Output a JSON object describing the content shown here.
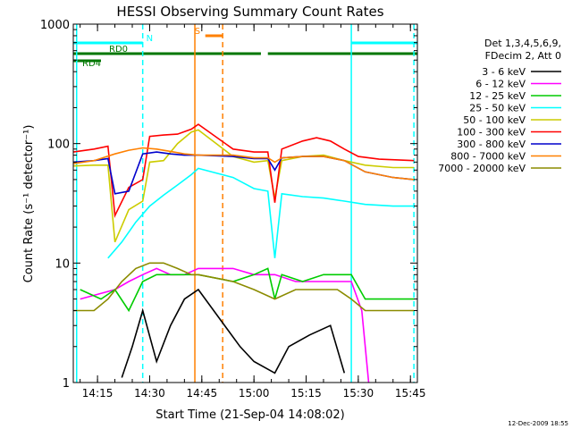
{
  "chart_data": {
    "type": "line",
    "title": "HESSI Observing Summary Count Rates",
    "xlabel": "Start Time (21-Sep-04 14:08:02)",
    "ylabel": "Count Rate (s⁻¹ detector⁻¹)",
    "ylog": true,
    "ylim": [
      1,
      1000
    ],
    "xlim": [
      "14:08:02",
      "15:47:00"
    ],
    "x_ticks": [
      "14:15",
      "14:30",
      "14:45",
      "15:00",
      "15:15",
      "15:30",
      "15:45"
    ],
    "y_ticks": [
      "1",
      "10",
      "100",
      "1000"
    ],
    "legend_header": [
      "Det 1,3,4,5,6,9,",
      "FDecim 2, Att 0"
    ],
    "footer_date": "12-Dec-2009 18:55",
    "flags": [
      {
        "label": "N",
        "color": "#00ffff",
        "segments": [
          [
            "14:08",
            "14:28"
          ],
          [
            "15:28",
            "15:47"
          ]
        ]
      },
      {
        "label": "S",
        "color": "#ff8000",
        "segments": [
          [
            "14:46",
            "14:51"
          ]
        ]
      },
      {
        "label": "RD0",
        "color": "#007700",
        "segments": [
          [
            "14:08",
            "15:02"
          ],
          [
            "15:04",
            "15:47"
          ]
        ]
      },
      {
        "label": "RD4",
        "color": "#007700",
        "segments": [
          [
            "14:08",
            "14:16"
          ]
        ]
      }
    ],
    "vlines": [
      {
        "time": "14:09",
        "color": "#00ffff",
        "style": "solid"
      },
      {
        "time": "14:28",
        "color": "#00ffff",
        "style": "dashed"
      },
      {
        "time": "14:43",
        "color": "#ff8000",
        "style": "solid"
      },
      {
        "time": "14:51",
        "color": "#ff8000",
        "style": "dashed"
      },
      {
        "time": "15:28",
        "color": "#00ffff",
        "style": "solid"
      },
      {
        "time": "15:46",
        "color": "#00ffff",
        "style": "dashed"
      }
    ],
    "series": [
      {
        "name": "3 - 6 keV",
        "color": "#000000",
        "points": [
          [
            "14:22",
            1.1
          ],
          [
            "14:25",
            2
          ],
          [
            "14:28",
            4
          ],
          [
            "14:32",
            1.5
          ],
          [
            "14:36",
            3
          ],
          [
            "14:40",
            5
          ],
          [
            "14:44",
            6
          ],
          [
            "14:56",
            2
          ],
          [
            "15:00",
            1.5
          ],
          [
            "15:06",
            1.2
          ],
          [
            "15:10",
            2
          ],
          [
            "15:16",
            2.5
          ],
          [
            "15:22",
            3
          ],
          [
            "15:26",
            1.2
          ]
        ]
      },
      {
        "name": "6 - 12 keV",
        "color": "#ff00ff",
        "points": [
          [
            "14:10",
            5
          ],
          [
            "14:20",
            6
          ],
          [
            "14:24",
            7
          ],
          [
            "14:28",
            8
          ],
          [
            "14:32",
            9
          ],
          [
            "14:36",
            8
          ],
          [
            "14:40",
            8
          ],
          [
            "14:44",
            9
          ],
          [
            "14:54",
            9
          ],
          [
            "15:00",
            8
          ],
          [
            "15:06",
            8
          ],
          [
            "15:12",
            7
          ],
          [
            "15:18",
            7
          ],
          [
            "15:24",
            7
          ],
          [
            "15:28",
            7
          ],
          [
            "15:31",
            4
          ],
          [
            "15:33",
            1
          ]
        ]
      },
      {
        "name": "12 - 25 keV",
        "color": "#00cc00",
        "points": [
          [
            "14:10",
            6
          ],
          [
            "14:16",
            5
          ],
          [
            "14:20",
            6
          ],
          [
            "14:24",
            4
          ],
          [
            "14:28",
            7
          ],
          [
            "14:32",
            8
          ],
          [
            "14:36",
            8
          ],
          [
            "14:40",
            8
          ],
          [
            "14:44",
            8
          ],
          [
            "14:54",
            7
          ],
          [
            "15:00",
            8
          ],
          [
            "15:04",
            9
          ],
          [
            "15:06",
            5
          ],
          [
            "15:08",
            8
          ],
          [
            "15:14",
            7
          ],
          [
            "15:20",
            8
          ],
          [
            "15:28",
            8
          ],
          [
            "15:32",
            5
          ],
          [
            "15:46",
            5
          ]
        ]
      },
      {
        "name": "25 - 50 keV",
        "color": "#00ffff",
        "points": [
          [
            "14:18",
            11
          ],
          [
            "14:22",
            15
          ],
          [
            "14:26",
            22
          ],
          [
            "14:30",
            30
          ],
          [
            "14:34",
            37
          ],
          [
            "14:38",
            45
          ],
          [
            "14:42",
            55
          ],
          [
            "14:44",
            62
          ],
          [
            "14:54",
            52
          ],
          [
            "15:00",
            42
          ],
          [
            "15:04",
            40
          ],
          [
            "15:06",
            11
          ],
          [
            "15:08",
            38
          ],
          [
            "15:14",
            36
          ],
          [
            "15:20",
            35
          ],
          [
            "15:26",
            33
          ],
          [
            "15:32",
            31
          ],
          [
            "15:40",
            30
          ],
          [
            "15:46",
            30
          ]
        ]
      },
      {
        "name": "50 - 100 keV",
        "color": "#cccc00",
        "points": [
          [
            "14:08",
            65
          ],
          [
            "14:14",
            66
          ],
          [
            "14:18",
            66
          ],
          [
            "14:20",
            15
          ],
          [
            "14:24",
            28
          ],
          [
            "14:28",
            33
          ],
          [
            "14:30",
            70
          ],
          [
            "14:34",
            72
          ],
          [
            "14:38",
            100
          ],
          [
            "14:42",
            125
          ],
          [
            "14:44",
            130
          ],
          [
            "14:54",
            78
          ],
          [
            "15:00",
            70
          ],
          [
            "15:04",
            72
          ],
          [
            "15:06",
            35
          ],
          [
            "15:08",
            72
          ],
          [
            "15:14",
            78
          ],
          [
            "15:20",
            80
          ],
          [
            "15:26",
            72
          ],
          [
            "15:32",
            66
          ],
          [
            "15:40",
            63
          ],
          [
            "15:46",
            63
          ]
        ]
      },
      {
        "name": "100 - 300 keV",
        "color": "#ff0000",
        "points": [
          [
            "14:08",
            85
          ],
          [
            "14:14",
            90
          ],
          [
            "14:18",
            95
          ],
          [
            "14:20",
            25
          ],
          [
            "14:24",
            43
          ],
          [
            "14:28",
            50
          ],
          [
            "14:30",
            115
          ],
          [
            "14:34",
            118
          ],
          [
            "14:38",
            120
          ],
          [
            "14:42",
            132
          ],
          [
            "14:44",
            145
          ],
          [
            "14:54",
            90
          ],
          [
            "15:00",
            85
          ],
          [
            "15:04",
            85
          ],
          [
            "15:06",
            32
          ],
          [
            "15:08",
            90
          ],
          [
            "15:14",
            105
          ],
          [
            "15:18",
            112
          ],
          [
            "15:22",
            105
          ],
          [
            "15:26",
            90
          ],
          [
            "15:30",
            78
          ],
          [
            "15:36",
            74
          ],
          [
            "15:46",
            72
          ]
        ]
      },
      {
        "name": "300 - 800 keV",
        "color": "#0000cc",
        "points": [
          [
            "14:08",
            70
          ],
          [
            "14:14",
            72
          ],
          [
            "14:18",
            75
          ],
          [
            "14:20",
            38
          ],
          [
            "14:24",
            40
          ],
          [
            "14:28",
            82
          ],
          [
            "14:32",
            85
          ],
          [
            "14:36",
            82
          ],
          [
            "14:40",
            80
          ],
          [
            "14:44",
            80
          ],
          [
            "14:54",
            78
          ],
          [
            "15:00",
            75
          ],
          [
            "15:04",
            75
          ],
          [
            "15:06",
            60
          ],
          [
            "15:08",
            76
          ],
          [
            "15:14",
            78
          ],
          [
            "15:20",
            78
          ],
          [
            "15:26",
            72
          ],
          [
            "15:32",
            58
          ],
          [
            "15:40",
            52
          ],
          [
            "15:46",
            50
          ]
        ]
      },
      {
        "name": "800 - 7000 keV",
        "color": "#ff8000",
        "points": [
          [
            "14:08",
            68
          ],
          [
            "14:14",
            72
          ],
          [
            "14:20",
            82
          ],
          [
            "14:24",
            88
          ],
          [
            "14:28",
            92
          ],
          [
            "14:32",
            90
          ],
          [
            "14:36",
            86
          ],
          [
            "14:40",
            82
          ],
          [
            "14:44",
            80
          ],
          [
            "14:54",
            80
          ],
          [
            "15:00",
            76
          ],
          [
            "15:04",
            76
          ],
          [
            "15:06",
            70
          ],
          [
            "15:08",
            76
          ],
          [
            "15:14",
            78
          ],
          [
            "15:20",
            78
          ],
          [
            "15:26",
            72
          ],
          [
            "15:32",
            58
          ],
          [
            "15:40",
            52
          ],
          [
            "15:46",
            50
          ]
        ]
      },
      {
        "name": "7000 - 20000 keV",
        "color": "#8b8b00",
        "points": [
          [
            "14:08",
            4
          ],
          [
            "14:14",
            4
          ],
          [
            "14:18",
            5
          ],
          [
            "14:22",
            7
          ],
          [
            "14:26",
            9
          ],
          [
            "14:30",
            10
          ],
          [
            "14:34",
            10
          ],
          [
            "14:38",
            9
          ],
          [
            "14:42",
            8
          ],
          [
            "14:44",
            8
          ],
          [
            "14:54",
            7
          ],
          [
            "15:00",
            6
          ],
          [
            "15:06",
            5
          ],
          [
            "15:12",
            6
          ],
          [
            "15:18",
            6
          ],
          [
            "15:24",
            6
          ],
          [
            "15:28",
            5
          ],
          [
            "15:32",
            4
          ],
          [
            "15:46",
            4
          ]
        ]
      }
    ]
  }
}
